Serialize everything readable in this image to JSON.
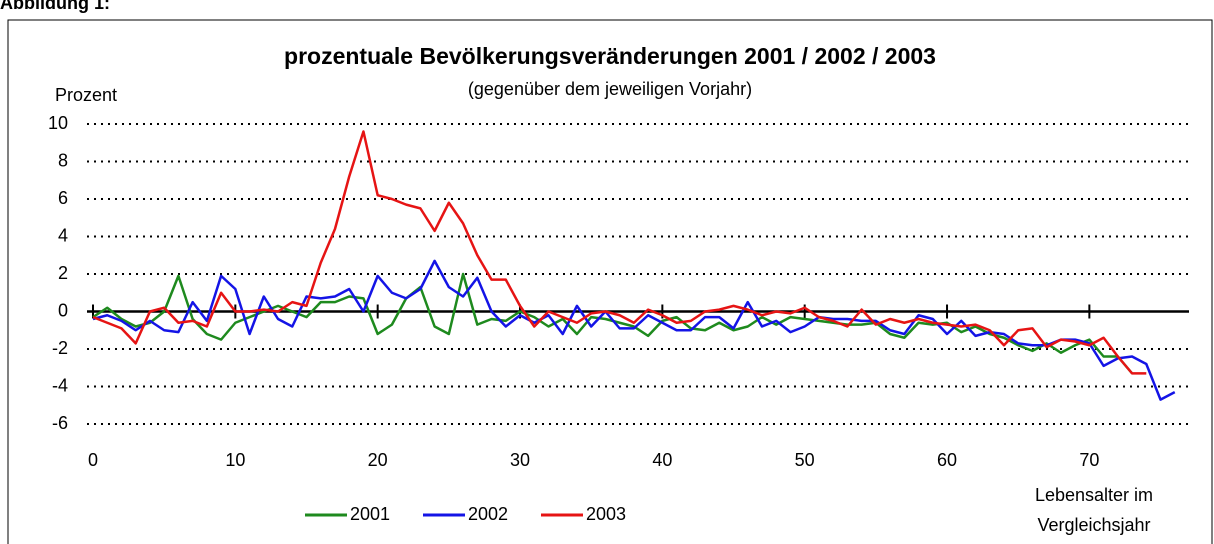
{
  "figure_label": "Abbildung 1:",
  "chart_data": {
    "type": "line",
    "title": "prozentuale Bevölkerungsveränderungen 2001 / 2002 / 2003",
    "subtitle": "(gegenüber dem jeweiligen Vorjahr)",
    "ylabel": "Prozent",
    "xlabel": "Lebensalter im Vergleichsjahr",
    "x": [
      0,
      1,
      2,
      3,
      4,
      5,
      6,
      7,
      8,
      9,
      10,
      11,
      12,
      13,
      14,
      15,
      16,
      17,
      18,
      19,
      20,
      21,
      22,
      23,
      24,
      25,
      26,
      27,
      28,
      29,
      30,
      31,
      32,
      33,
      34,
      35,
      36,
      37,
      38,
      39,
      40,
      41,
      42,
      43,
      44,
      45,
      46,
      47,
      48,
      49,
      50,
      51,
      52,
      53,
      54,
      55,
      56,
      57,
      58,
      59,
      60,
      61,
      62,
      63,
      64,
      65,
      66,
      67,
      68,
      69,
      70,
      71,
      72,
      73,
      74,
      75,
      76
    ],
    "series": [
      {
        "name": "2001",
        "color": "#1e8a1e",
        "values": [
          -0.3,
          0.2,
          -0.4,
          -0.8,
          -0.6,
          0,
          1.9,
          -0.4,
          -1.2,
          -1.5,
          -0.6,
          -0.3,
          0,
          0.3,
          0,
          -0.3,
          0.5,
          0.5,
          0.8,
          0.7,
          -1.2,
          -0.7,
          0.7,
          1.3,
          -0.8,
          -1.2,
          2.0,
          -0.7,
          -0.4,
          -0.5,
          0,
          -0.3,
          -0.8,
          -0.4,
          -1.2,
          -0.3,
          -0.4,
          -0.6,
          -0.8,
          -1.3,
          -0.5,
          -0.3,
          -0.9,
          -1.0,
          -0.6,
          -1.0,
          -0.8,
          -0.3,
          -0.7,
          -0.3,
          -0.4,
          -0.5,
          -0.6,
          -0.7,
          -0.7,
          -0.6,
          -1.2,
          -1.4,
          -0.6,
          -0.7,
          -0.6,
          -1.1,
          -0.8,
          -1.2,
          -1.4,
          -1.8,
          -2.1,
          -1.7,
          -2.2,
          -1.8,
          -1.5,
          -2.4,
          -2.4,
          -3.3,
          null,
          null,
          null
        ]
      },
      {
        "name": "2002",
        "color": "#1414e6",
        "values": [
          -0.4,
          -0.2,
          -0.5,
          -1.0,
          -0.5,
          -1.0,
          -1.1,
          0.5,
          -0.5,
          1.9,
          1.2,
          -1.2,
          0.8,
          -0.4,
          -0.8,
          0.8,
          0.7,
          0.8,
          1.2,
          0,
          1.9,
          1.0,
          0.7,
          1.2,
          2.7,
          1.3,
          0.8,
          1.8,
          0,
          -0.8,
          -0.2,
          -0.6,
          -0.2,
          -1.2,
          0.3,
          -0.8,
          0,
          -0.9,
          -0.9,
          -0.2,
          -0.6,
          -1.0,
          -1.0,
          -0.3,
          -0.3,
          -0.9,
          0.5,
          -0.8,
          -0.5,
          -1.1,
          -0.8,
          -0.3,
          -0.4,
          -0.4,
          -0.5,
          -0.5,
          -1.0,
          -1.2,
          -0.2,
          -0.4,
          -1.2,
          -0.5,
          -1.3,
          -1.1,
          -1.2,
          -1.7,
          -1.8,
          -1.8,
          -1.5,
          -1.5,
          -1.7,
          -2.9,
          -2.5,
          -2.4,
          -2.8,
          -4.7,
          -4.3
        ]
      },
      {
        "name": "2003",
        "color": "#e61414",
        "values": [
          -0.3,
          -0.6,
          -0.9,
          -1.7,
          0,
          0.2,
          -0.6,
          -0.5,
          -0.8,
          1.0,
          0,
          0,
          0.1,
          0,
          0.5,
          0.3,
          2.6,
          4.4,
          7.2,
          9.6,
          6.2,
          6.0,
          5.7,
          5.5,
          4.3,
          5.8,
          4.7,
          3.0,
          1.7,
          1.7,
          0.3,
          -0.8,
          0,
          -0.3,
          -0.6,
          -0.1,
          0,
          -0.2,
          -0.6,
          0.1,
          -0.2,
          -0.6,
          -0.5,
          0,
          0.1,
          0.3,
          0.1,
          -0.2,
          0,
          -0.1,
          0.2,
          -0.3,
          -0.5,
          -0.8,
          0.1,
          -0.7,
          -0.4,
          -0.6,
          -0.4,
          -0.6,
          -0.7,
          -0.8,
          -0.7,
          -1.0,
          -1.8,
          -1.0,
          -0.9,
          -1.9,
          -1.5,
          -1.6,
          -1.8,
          -1.4,
          -2.4,
          -3.3,
          -3.3,
          null,
          null
        ]
      }
    ],
    "xlim": [
      0,
      77
    ],
    "xticks": [
      0,
      10,
      20,
      30,
      40,
      50,
      60,
      70
    ],
    "ylim": [
      -6,
      10
    ],
    "yticks": [
      -6,
      -4,
      -2,
      0,
      2,
      4,
      6,
      8,
      10
    ],
    "grid": true,
    "legend": "bottom"
  }
}
